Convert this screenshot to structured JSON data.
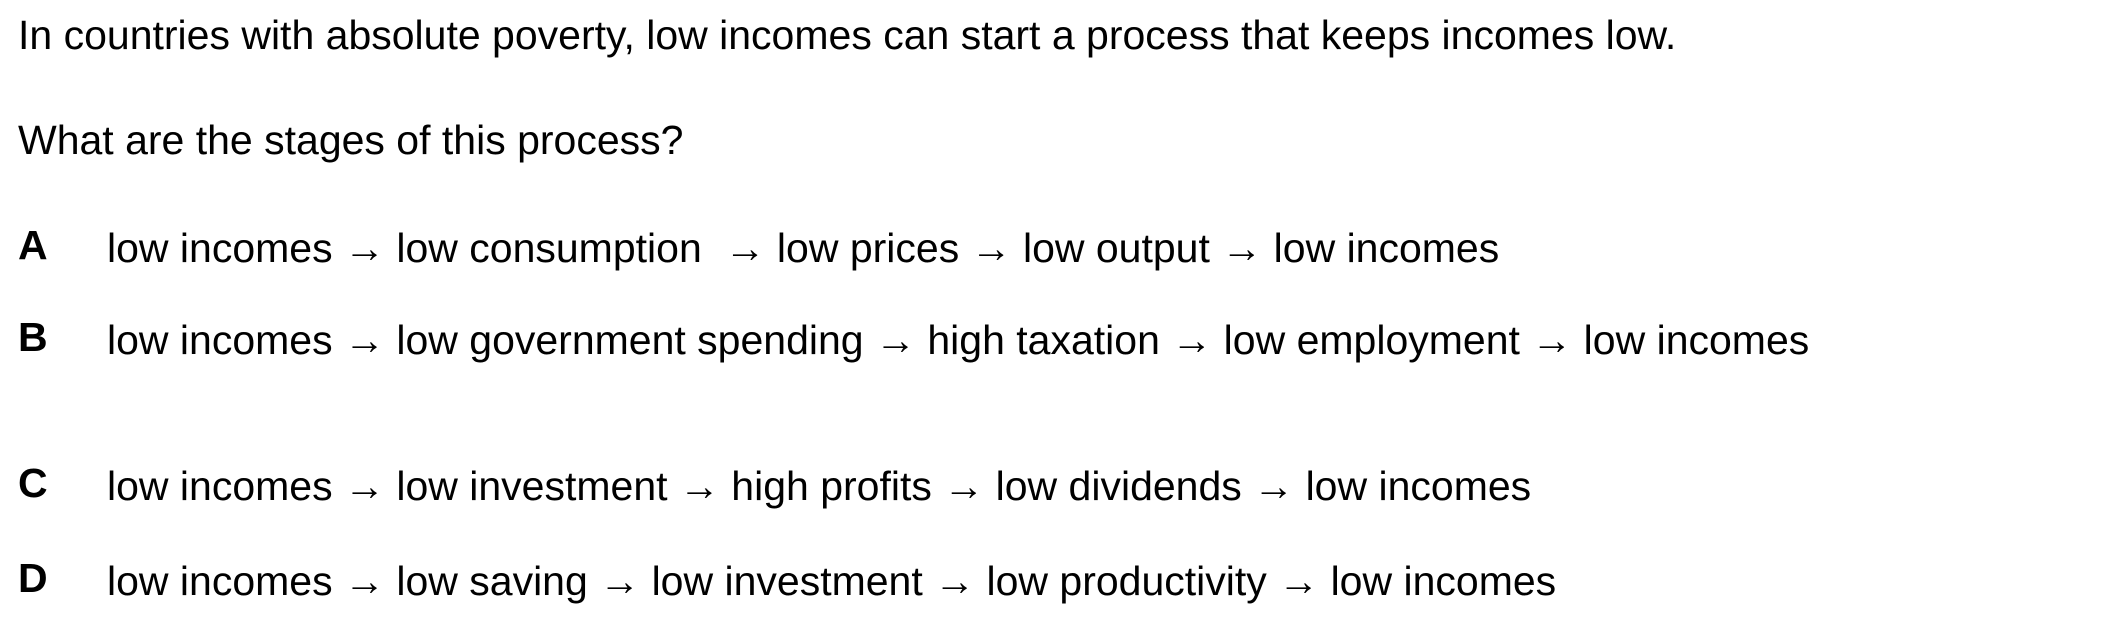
{
  "stem": "In countries with absolute poverty, low incomes can start a process that keeps incomes low.",
  "question": "What are the stages of this process?",
  "options": [
    {
      "letter": "A",
      "text": "low incomes → low consumption  → low prices → low output → low incomes"
    },
    {
      "letter": "B",
      "text": "low incomes → low government spending → high taxation → low employment → low incomes"
    },
    {
      "letter": "C",
      "text": "low incomes → low investment → high profits → low dividends → low incomes"
    },
    {
      "letter": "D",
      "text": "low incomes → low saving → low investment → low productivity → low incomes"
    }
  ]
}
